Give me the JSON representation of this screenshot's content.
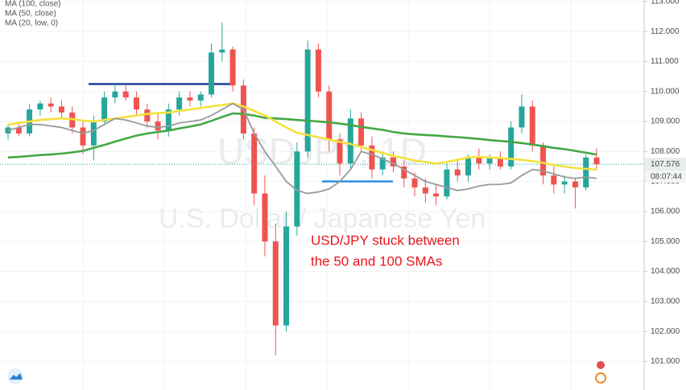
{
  "chart_data": {
    "type": "candlestick",
    "watermark": "USDJPY, 1D",
    "watermark_subtitle": "U.S. Dollar / Japanese Yen",
    "annotation": [
      "USD/JPY stuck between",
      "the 50 and 100 SMAs"
    ],
    "up_color": "#26a69a",
    "down_color": "#ef5350",
    "open": [
      108.6,
      108.8,
      108.6,
      109.4,
      109.6,
      109.5,
      109.3,
      108.8,
      108.2,
      109.0,
      109.8,
      110.0,
      109.8,
      109.4,
      109.0,
      108.7,
      109.4,
      109.8,
      109.7,
      109.9,
      111.3,
      111.4,
      110.2,
      108.6,
      106.6,
      105.0,
      102.2,
      105.5,
      108.0,
      111.4,
      110.0,
      108.4,
      107.6,
      109.1,
      108.2,
      107.4,
      107.8,
      107.5,
      107.1,
      106.8,
      106.6,
      106.5,
      107.4,
      107.2,
      107.8,
      107.6,
      107.8,
      107.5,
      108.8,
      109.5,
      108.2,
      107.2,
      106.9,
      107.0,
      106.8,
      107.8
    ],
    "high": [
      108.9,
      109.0,
      109.6,
      109.7,
      109.8,
      109.7,
      109.5,
      109.0,
      109.2,
      110.0,
      110.3,
      110.2,
      110.0,
      109.6,
      109.3,
      109.6,
      110.0,
      110.0,
      110.0,
      111.6,
      112.3,
      111.5,
      110.4,
      108.8,
      107.2,
      105.6,
      106.0,
      108.3,
      111.7,
      111.6,
      110.2,
      108.6,
      109.4,
      109.3,
      108.5,
      108.0,
      108.0,
      107.7,
      107.3,
      107.1,
      106.9,
      107.6,
      107.7,
      107.9,
      108.1,
      107.9,
      108.0,
      109.0,
      109.9,
      109.7,
      108.3,
      107.5,
      107.2,
      107.1,
      107.9,
      108.1
    ],
    "low": [
      108.4,
      108.5,
      108.5,
      109.2,
      109.3,
      109.1,
      108.6,
      107.9,
      107.7,
      108.9,
      109.6,
      109.7,
      109.2,
      108.8,
      108.4,
      108.5,
      109.2,
      109.5,
      109.5,
      109.8,
      111.0,
      110.0,
      108.4,
      106.2,
      104.5,
      101.2,
      102.0,
      105.2,
      107.8,
      109.8,
      108.0,
      107.2,
      107.4,
      108.0,
      107.1,
      107.2,
      107.3,
      106.8,
      106.5,
      106.3,
      106.2,
      106.4,
      107.0,
      107.0,
      107.4,
      107.4,
      107.4,
      107.4,
      108.6,
      108.0,
      106.9,
      106.6,
      106.6,
      106.1,
      106.7,
      107.4
    ],
    "close": [
      108.8,
      108.6,
      109.4,
      109.6,
      109.5,
      109.3,
      108.8,
      108.2,
      109.0,
      109.8,
      110.0,
      109.8,
      109.4,
      109.0,
      108.7,
      109.4,
      109.8,
      109.7,
      109.9,
      111.3,
      111.4,
      110.2,
      108.6,
      106.6,
      105.0,
      102.2,
      105.5,
      108.0,
      111.4,
      110.0,
      108.4,
      107.6,
      109.1,
      108.2,
      107.4,
      107.8,
      107.5,
      107.1,
      106.8,
      106.6,
      106.5,
      107.4,
      107.2,
      107.8,
      107.6,
      107.8,
      107.5,
      108.8,
      109.5,
      108.2,
      107.2,
      106.9,
      107.0,
      106.8,
      107.8,
      107.576
    ],
    "overlays": [
      {
        "name": "MA (100, close)",
        "color": "#43a843",
        "values": [
          107.8,
          107.82,
          107.85,
          107.88,
          107.9,
          107.93,
          107.97,
          108.02,
          108.12,
          108.22,
          108.33,
          108.43,
          108.53,
          108.6,
          108.65,
          108.7,
          108.77,
          108.83,
          108.9,
          109.02,
          109.15,
          109.27,
          109.25,
          109.2,
          109.12,
          109.1,
          109.08,
          109.05,
          109.03,
          109.0,
          108.97,
          108.93,
          108.88,
          108.82,
          108.77,
          108.72,
          108.65,
          108.6,
          108.57,
          108.55,
          108.53,
          108.5,
          108.48,
          108.45,
          108.42,
          108.38,
          108.35,
          108.32,
          108.28,
          108.23,
          108.18,
          108.12,
          108.08,
          108.02,
          107.96,
          107.9
        ]
      },
      {
        "name": "MA (50, close)",
        "color": "#f5e13d",
        "values": [
          108.9,
          108.95,
          109.0,
          109.05,
          109.08,
          109.1,
          109.08,
          109.03,
          109.0,
          109.05,
          109.1,
          109.15,
          109.2,
          109.25,
          109.28,
          109.3,
          109.35,
          109.4,
          109.45,
          109.5,
          109.55,
          109.6,
          109.5,
          109.35,
          109.2,
          109.0,
          108.8,
          108.62,
          108.55,
          108.48,
          108.4,
          108.32,
          108.25,
          108.15,
          108.05,
          107.95,
          107.85,
          107.78,
          107.7,
          107.65,
          107.6,
          107.65,
          107.72,
          107.8,
          107.82,
          107.8,
          107.78,
          107.75,
          107.72,
          107.68,
          107.62,
          107.55,
          107.5,
          107.45,
          107.42,
          107.4
        ]
      },
      {
        "name": "MA (20, low, 0)",
        "color": "#9a9a9a",
        "values": [
          108.7,
          108.8,
          108.9,
          108.9,
          108.85,
          108.8,
          108.7,
          108.6,
          108.7,
          108.9,
          109.1,
          109.05,
          108.95,
          108.85,
          108.8,
          108.85,
          108.95,
          109.0,
          109.05,
          109.2,
          109.4,
          109.6,
          109.4,
          108.6,
          108.0,
          107.5,
          107.0,
          106.7,
          106.6,
          106.65,
          106.75,
          107.0,
          107.4,
          108.0,
          107.9,
          107.75,
          107.6,
          107.4,
          107.2,
          107.0,
          106.9,
          106.8,
          106.7,
          106.75,
          106.85,
          106.9,
          106.9,
          106.95,
          107.2,
          107.4,
          107.35,
          107.25,
          107.15,
          107.1,
          107.15,
          107.1
        ]
      }
    ],
    "hlines": [
      {
        "value": 110.25,
        "color": "#1f3f9a"
      },
      {
        "value": 107.0,
        "color": "#2f8fe0"
      }
    ],
    "last_price": {
      "value": 107.576,
      "label": "107.576"
    },
    "countdown": "08:07:44",
    "ylim": [
      100.45,
      113.05
    ],
    "yticks": [
      {
        "value": 101,
        "label": "101.000"
      },
      {
        "value": 102,
        "label": "102.000"
      },
      {
        "value": 103,
        "label": "103.000"
      },
      {
        "value": 104,
        "label": "104.000"
      },
      {
        "value": 105,
        "label": "105.000"
      },
      {
        "value": 106,
        "label": "106.000"
      },
      {
        "value": 107,
        "label": "107.000"
      },
      {
        "value": 108,
        "label": "108.000"
      },
      {
        "value": 109,
        "label": "109.000"
      },
      {
        "value": 110,
        "label": "110.000"
      },
      {
        "value": 111,
        "label": "111.000"
      },
      {
        "value": 112,
        "label": "112.000"
      },
      {
        "value": 113,
        "label": "113.000"
      }
    ],
    "grid": true
  }
}
